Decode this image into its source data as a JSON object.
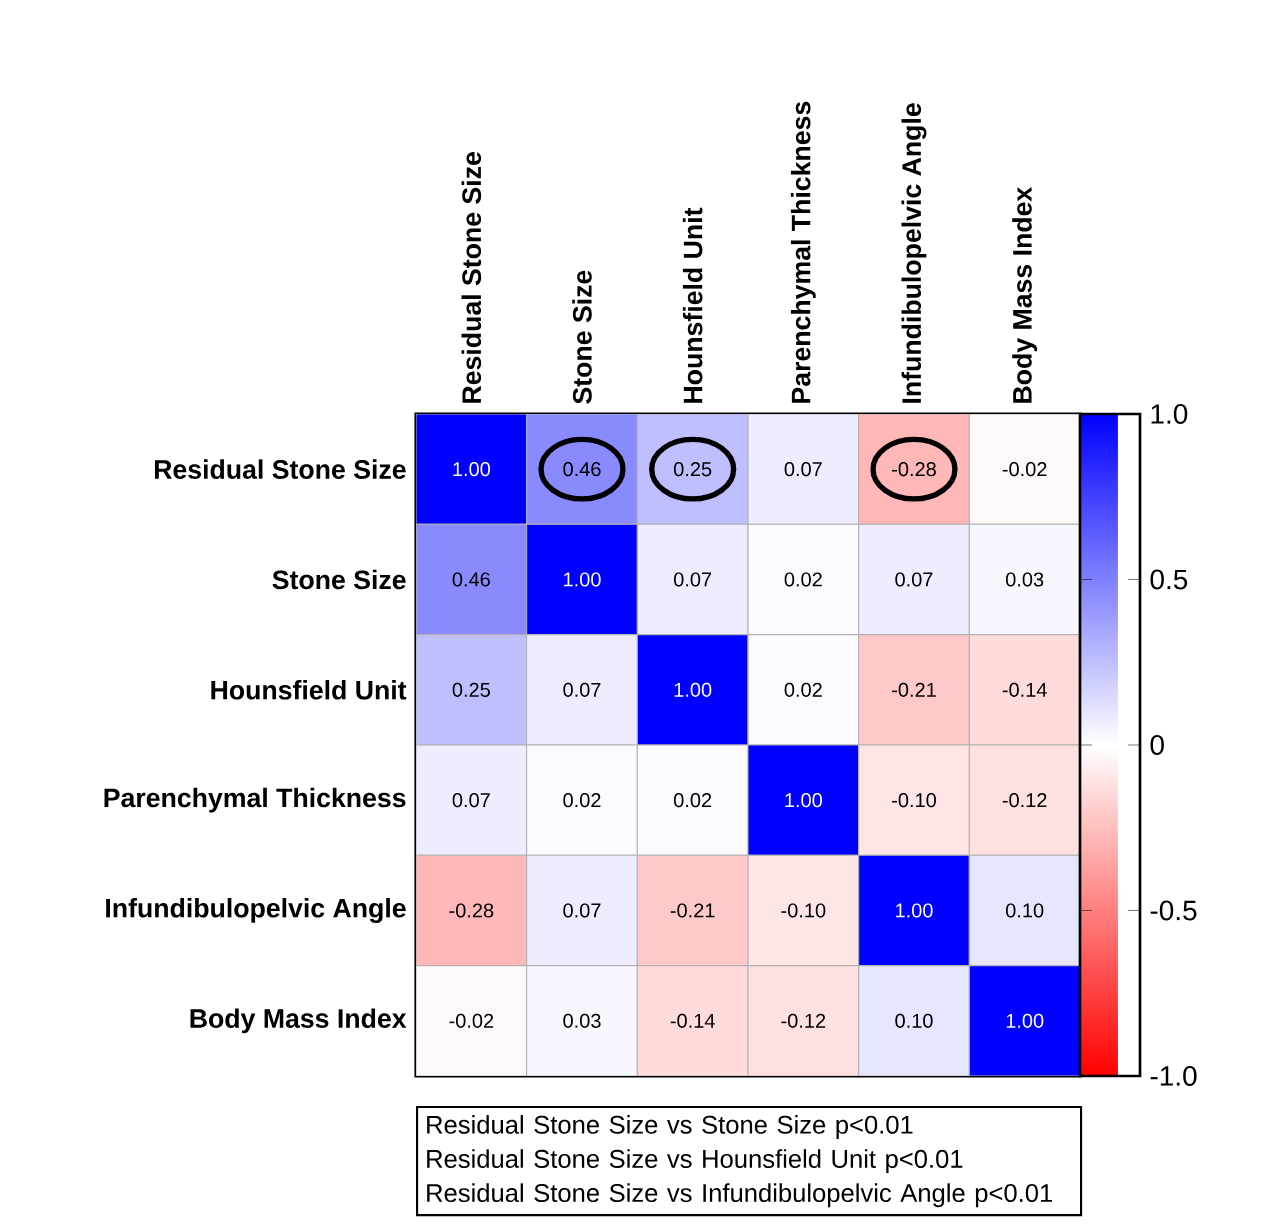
{
  "chart_data": {
    "type": "heatmap",
    "categories": [
      "Residual Stone Size",
      "Stone Size",
      "Hounsfield Unit",
      "Parenchymal Thickness",
      "Infundibulopelvic Angle",
      "Body Mass Index"
    ],
    "y_categories": [
      "Residual Stone Size",
      "Stone Size",
      "Hounsfield Unit",
      "Parenchymal Thickness",
      "Infundibulopelvic Angle",
      "Body Mass Index"
    ],
    "cells": [
      [
        1.0,
        0.46,
        0.25,
        0.07,
        -0.28,
        -0.02
      ],
      [
        0.46,
        1.0,
        0.07,
        0.02,
        0.07,
        0.03
      ],
      [
        0.25,
        0.07,
        1.0,
        0.02,
        -0.21,
        -0.14
      ],
      [
        0.07,
        0.02,
        0.02,
        1.0,
        -0.1,
        -0.12
      ],
      [
        -0.28,
        0.07,
        -0.21,
        -0.1,
        1.0,
        0.1
      ],
      [
        -0.02,
        0.03,
        -0.14,
        -0.12,
        0.1,
        1.0
      ]
    ],
    "cell_labels": [
      [
        "1.00",
        "0.46",
        "0.25",
        "0.07",
        "-0.28",
        "-0.02"
      ],
      [
        "0.46",
        "1.00",
        "0.07",
        "0.02",
        "0.07",
        "0.03"
      ],
      [
        "0.25",
        "0.07",
        "1.00",
        "0.02",
        "-0.21",
        "-0.14"
      ],
      [
        "0.07",
        "0.02",
        "0.02",
        "1.00",
        "-0.10",
        "-0.12"
      ],
      [
        "-0.28",
        "0.07",
        "-0.21",
        "-0.10",
        "1.00",
        "0.10"
      ],
      [
        "-0.02",
        "0.03",
        "-0.14",
        "-0.12",
        "0.10",
        "1.00"
      ]
    ],
    "clim": [
      -1,
      1
    ],
    "cticks": [
      {
        "value": -1,
        "label": "-1.0"
      },
      {
        "value": -0.5,
        "label": "-0.5"
      },
      0,
      {
        "value": 0.5,
        "label": "0.5"
      },
      {
        "value": 1,
        "label": "1.0"
      }
    ],
    "annotations": [
      "Residual Stone Size vs Stone Size p<0.01",
      "Residual Stone Size vs Hounsfield Unit p<0.01",
      "Residual Stone Size vs Infundibulopelvic Angle p<0.01"
    ]
  }
}
